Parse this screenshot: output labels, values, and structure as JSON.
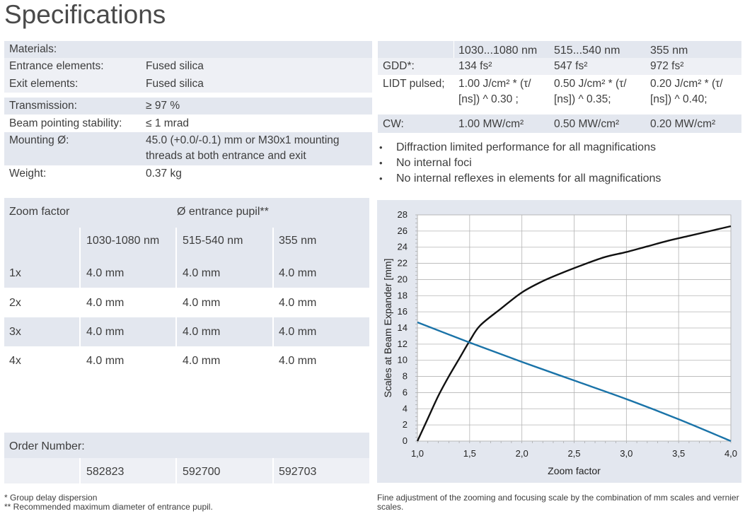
{
  "title": "Specifications",
  "materials": {
    "header": "Materials:",
    "rows": [
      {
        "label": "Entrance elements:",
        "value": "Fused silica"
      },
      {
        "label": "Exit elements:",
        "value": "Fused silica"
      },
      {
        "label": "Transmission:",
        "value": "≥ 97 %"
      },
      {
        "label": "Beam pointing stability:",
        "value": "≤ 1 mrad"
      },
      {
        "label": "Mounting Ø:",
        "value": "45.0 (+0.0/-0.1) mm or M30x1 mounting",
        "value2": "threads at both entrance and exit"
      },
      {
        "label": "Weight:",
        "value": "0.37 kg"
      }
    ]
  },
  "lidt": {
    "headers": [
      "1030...1080 nm",
      "515...540 nm",
      "355 nm"
    ],
    "gdd": {
      "label": "GDD*:",
      "values": [
        "134 fs²",
        "547 fs²",
        "972 fs²"
      ]
    },
    "pulsed": {
      "label": "LIDT pulsed;",
      "line1": [
        "1.00 J/cm² * (τ/",
        "0.50 J/cm² * (τ/",
        "0.20 J/cm² * (τ/"
      ],
      "line2": [
        "[ns]) ^ 0.30 ;",
        "[ns]) ^ 0.35;",
        "[ns]) ^ 0.40;"
      ]
    },
    "cw": {
      "label": "CW:",
      "values": [
        "1.00 MW/cm²",
        "0.50 MW/cm²",
        "0.20 MW/cm²"
      ]
    }
  },
  "bullets": [
    "Diffraction limited performance for all magnifications",
    "No internal foci",
    "No internal reflexes in elements for all magnifications"
  ],
  "zoom": {
    "col1": "Zoom factor",
    "col_group": "Ø entrance pupil**",
    "subheaders": [
      "1030-1080 nm",
      "515-540 nm",
      "355 nm"
    ],
    "rows": [
      {
        "factor": "1x",
        "values": [
          "4.0 mm",
          "4.0 mm",
          "4.0 mm"
        ]
      },
      {
        "factor": "2x",
        "values": [
          "4.0 mm",
          "4.0 mm",
          "4.0 mm"
        ]
      },
      {
        "factor": "3x",
        "values": [
          "4.0 mm",
          "4.0 mm",
          "4.0 mm"
        ]
      },
      {
        "factor": "4x",
        "values": [
          "4.0 mm",
          "4.0 mm",
          "4.0 mm"
        ]
      }
    ]
  },
  "order": {
    "label": "Order Number:",
    "numbers": [
      "582823",
      "592700",
      "592703"
    ]
  },
  "footnotes": {
    "left1": "*  Group delay dispersion",
    "left2": "** Recommended maximum diameter of entrance pupil.",
    "right": "Fine adjustment of the zooming and focusing scale by the combination of mm scales and vernier scales."
  },
  "colors": {
    "shade": "#e3e7ef",
    "curve_black": "#111111",
    "curve_blue": "#1a73a8",
    "grid": "#b4b4b4"
  },
  "chart_data": {
    "type": "line",
    "xlabel": "Zoom factor",
    "ylabel": "Scales at Beam Expander [mm]",
    "xlim": [
      1.0,
      4.0
    ],
    "ylim": [
      0,
      28
    ],
    "xticks": [
      "1,0",
      "1,5",
      "2,0",
      "2,5",
      "3,0",
      "3,5",
      "4,0"
    ],
    "yticks": [
      "0",
      "2",
      "4",
      "6",
      "8",
      "10",
      "12",
      "14",
      "16",
      "18",
      "20",
      "22",
      "24",
      "26",
      "28"
    ],
    "series": [
      {
        "color": "#111111",
        "x": [
          1.0,
          1.1,
          1.2,
          1.3,
          1.4,
          1.5,
          1.6,
          1.8,
          2.0,
          2.2,
          2.4,
          2.6,
          2.8,
          3.0,
          3.2,
          3.4,
          3.6,
          3.8,
          4.0
        ],
        "y": [
          0,
          2.8,
          5.6,
          8.0,
          10.2,
          12.4,
          14.3,
          16.4,
          18.4,
          19.8,
          20.9,
          21.9,
          22.8,
          23.4,
          24.1,
          24.8,
          25.4,
          26.0,
          26.6
        ]
      },
      {
        "color": "#1a73a8",
        "x": [
          1.0,
          1.5,
          2.0,
          2.5,
          3.0,
          3.5,
          4.0
        ],
        "y": [
          14.7,
          12.2,
          9.8,
          7.5,
          5.2,
          2.7,
          0
        ]
      }
    ]
  }
}
